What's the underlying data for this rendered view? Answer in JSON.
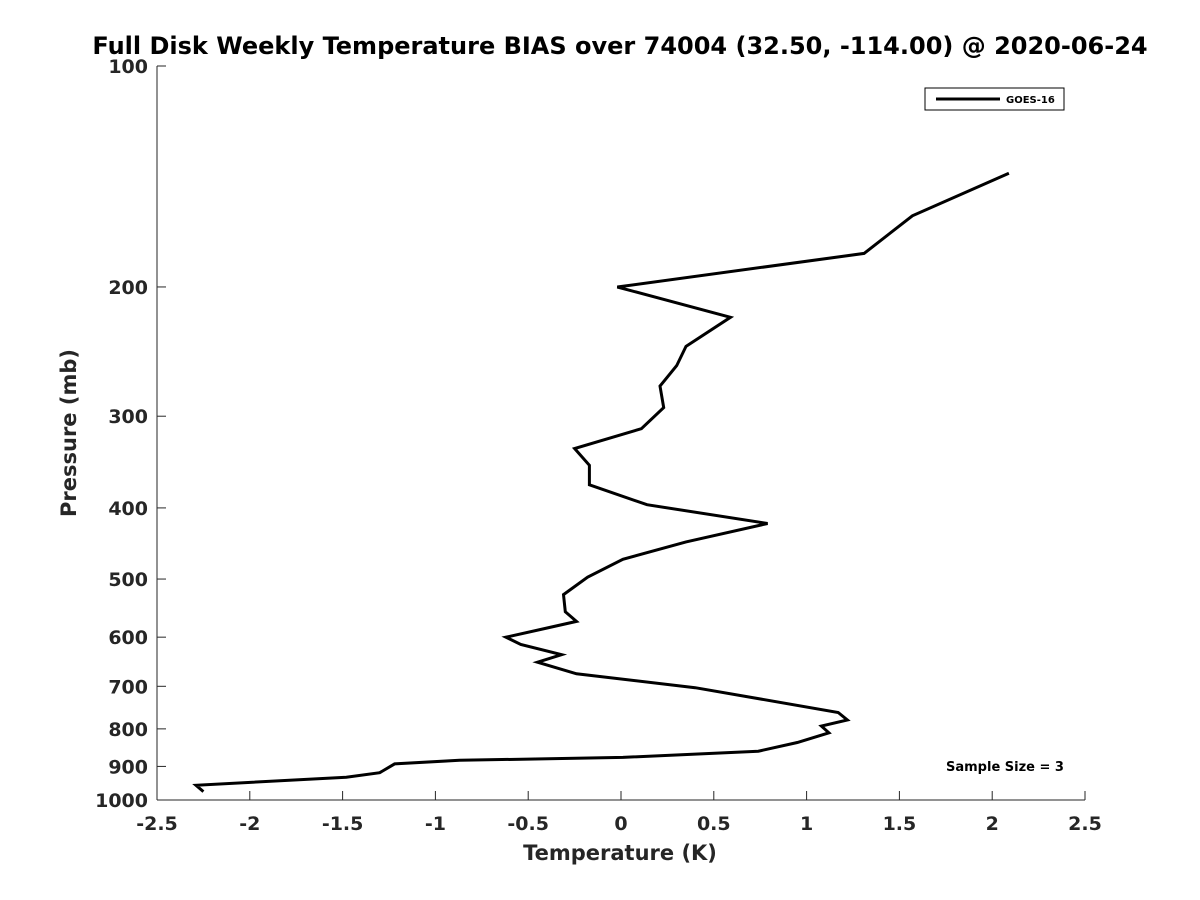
{
  "chart_data": {
    "type": "line",
    "title": "Full Disk Weekly Temperature BIAS over 74004 (32.50, -114.00) @ 2020-06-24",
    "xlabel": "Temperature (K)",
    "ylabel": "Pressure (mb)",
    "xlim": [
      -2.5,
      2.5
    ],
    "ylim": [
      100,
      1000
    ],
    "y_scale": "log",
    "y_reversed": true,
    "x_ticks": [
      "-2.5",
      "-2",
      "-1.5",
      "-1",
      "-0.5",
      "0",
      "0.5",
      "1",
      "1.5",
      "2",
      "2.5"
    ],
    "y_ticks": [
      "100",
      "200",
      "300",
      "400",
      "500",
      "600",
      "700",
      "800",
      "900",
      "1000"
    ],
    "grid": false,
    "legend_position": "top-right",
    "annotation": "Sample Size = 3",
    "series": [
      {
        "name": "GOES-16",
        "color": "#000000",
        "points": [
          [
            2.09,
            140
          ],
          [
            1.57,
            160
          ],
          [
            1.31,
            180
          ],
          [
            -0.02,
            200
          ],
          [
            0.59,
            220
          ],
          [
            0.35,
            241
          ],
          [
            0.3,
            256
          ],
          [
            0.21,
            273
          ],
          [
            0.23,
            292
          ],
          [
            0.11,
            312
          ],
          [
            -0.25,
            332
          ],
          [
            -0.17,
            350
          ],
          [
            -0.17,
            372
          ],
          [
            0.14,
            396
          ],
          [
            0.79,
            420
          ],
          [
            0.35,
            445
          ],
          [
            0.01,
            470
          ],
          [
            -0.18,
            497
          ],
          [
            -0.31,
            525
          ],
          [
            -0.3,
            554
          ],
          [
            -0.24,
            571
          ],
          [
            -0.41,
            584
          ],
          [
            -0.62,
            600
          ],
          [
            -0.54,
            614
          ],
          [
            -0.32,
            634
          ],
          [
            -0.45,
            649
          ],
          [
            -0.24,
            673
          ],
          [
            0.4,
            703
          ],
          [
            1.17,
            760
          ],
          [
            1.22,
            778
          ],
          [
            1.08,
            793
          ],
          [
            1.12,
            810
          ],
          [
            0.95,
            835
          ],
          [
            0.74,
            858
          ],
          [
            0.01,
            875
          ],
          [
            -0.87,
            883
          ],
          [
            -1.22,
            893
          ],
          [
            -1.3,
            918
          ],
          [
            -1.48,
            931
          ],
          [
            -2.29,
            955
          ],
          [
            -2.25,
            974
          ]
        ]
      }
    ]
  }
}
